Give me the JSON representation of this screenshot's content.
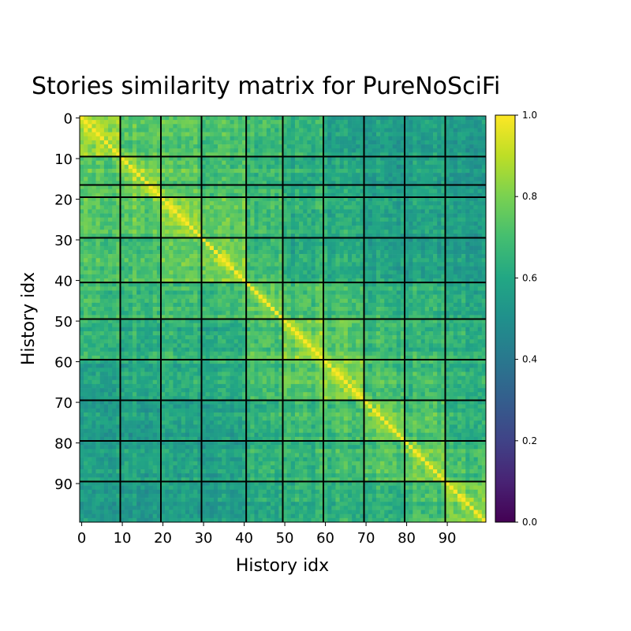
{
  "chart_data": {
    "type": "heatmap",
    "title": "Stories similarity matrix for PureNoSciFi",
    "xlabel": "History idx",
    "ylabel": "History idx",
    "n": 100,
    "x_ticks": [
      0,
      10,
      20,
      30,
      40,
      50,
      60,
      70,
      80,
      90
    ],
    "y_ticks": [
      0,
      10,
      20,
      30,
      40,
      50,
      60,
      70,
      80,
      90
    ],
    "block_boundaries": [
      9.5,
      19.5,
      29.5,
      40.5,
      49.5,
      59.5,
      69.5,
      79.5,
      89.5
    ],
    "horizontal_boundaries": [
      9.5,
      16.5,
      19.5,
      29.5,
      40.5,
      49.5,
      59.5,
      69.5,
      79.5,
      89.5
    ],
    "block_sizes": [
      10,
      10,
      10,
      11,
      9,
      10,
      10,
      10,
      10,
      10
    ],
    "diagonal_value": 1.0,
    "block_similarity_matrix": [
      [
        0.82,
        0.72,
        0.72,
        0.7,
        0.66,
        0.64,
        0.56,
        0.54,
        0.56,
        0.54
      ],
      [
        0.72,
        0.8,
        0.74,
        0.7,
        0.66,
        0.62,
        0.6,
        0.56,
        0.58,
        0.54
      ],
      [
        0.72,
        0.74,
        0.82,
        0.76,
        0.68,
        0.64,
        0.62,
        0.58,
        0.58,
        0.56
      ],
      [
        0.7,
        0.7,
        0.76,
        0.8,
        0.68,
        0.62,
        0.62,
        0.58,
        0.58,
        0.56
      ],
      [
        0.66,
        0.66,
        0.68,
        0.68,
        0.74,
        0.7,
        0.68,
        0.64,
        0.64,
        0.6
      ],
      [
        0.64,
        0.62,
        0.64,
        0.62,
        0.7,
        0.8,
        0.74,
        0.68,
        0.66,
        0.64
      ],
      [
        0.56,
        0.6,
        0.62,
        0.62,
        0.68,
        0.74,
        0.82,
        0.7,
        0.68,
        0.64
      ],
      [
        0.54,
        0.56,
        0.58,
        0.58,
        0.64,
        0.68,
        0.7,
        0.78,
        0.72,
        0.64
      ],
      [
        0.56,
        0.58,
        0.58,
        0.58,
        0.64,
        0.66,
        0.68,
        0.72,
        0.78,
        0.7
      ],
      [
        0.54,
        0.54,
        0.56,
        0.56,
        0.6,
        0.64,
        0.64,
        0.64,
        0.7,
        0.8
      ]
    ],
    "colormap": "viridis",
    "vmin": 0.0,
    "vmax": 1.0,
    "colorbar_ticks": [
      "0.0",
      "0.2",
      "0.4",
      "0.6",
      "0.8",
      "1.0"
    ],
    "colorbar_tick_values": [
      0.0,
      0.2,
      0.4,
      0.6,
      0.8,
      1.0
    ],
    "boundary_line_color": "#000000",
    "grid": false
  }
}
